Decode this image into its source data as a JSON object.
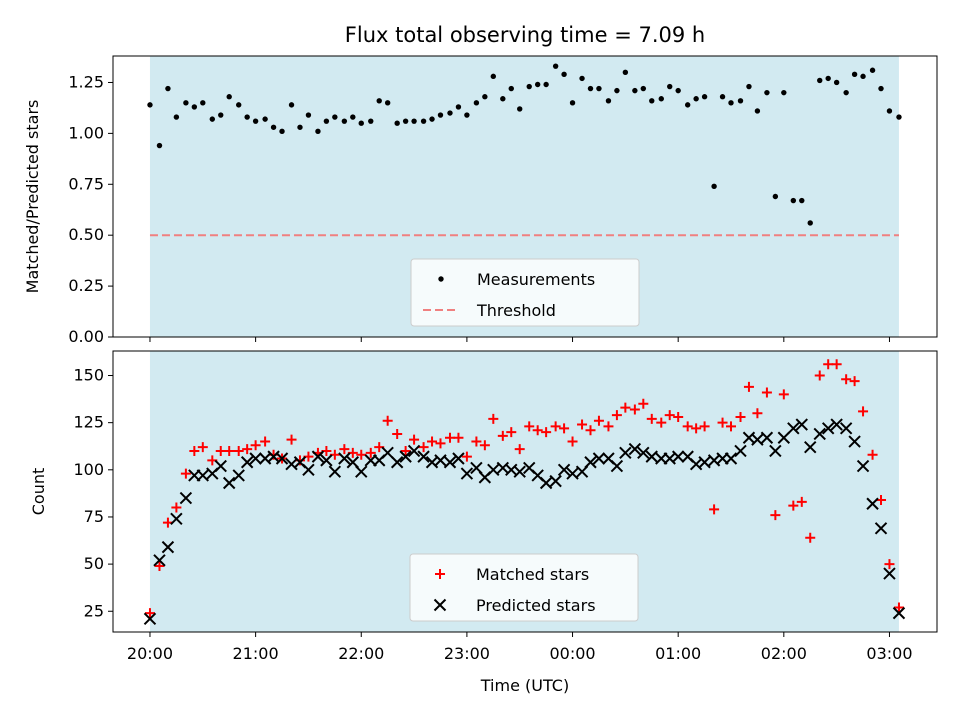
{
  "title": "Flux total observing time = 7.09 h",
  "xlabel": "Time (UTC)",
  "colors": {
    "background_shade": "#add8e6",
    "measurements": "#000000",
    "threshold": "#f08080",
    "matched": "#ff0000",
    "predicted": "#000000"
  },
  "chart_data": [
    {
      "type": "scatter",
      "ylabel": "Matched/Predicted stars",
      "ylim": [
        0,
        1.38
      ],
      "yticks": [
        0.0,
        0.25,
        0.5,
        0.75,
        1.0,
        1.25
      ],
      "ytick_labels": [
        "0.00",
        "0.25",
        "0.50",
        "0.75",
        "1.00",
        "1.25"
      ],
      "xlim_hours": [
        19.65,
        27.45
      ],
      "shade_range_hours": [
        20.0,
        27.09
      ],
      "threshold": 0.5,
      "legend": {
        "position": "lower center",
        "entries": [
          "Measurements",
          "Threshold"
        ]
      },
      "series": [
        {
          "name": "Measurements",
          "marker": "dot",
          "x": [
            20.0,
            20.09,
            20.17,
            20.25,
            20.34,
            20.42,
            20.5,
            20.59,
            20.67,
            20.75,
            20.84,
            20.92,
            21.0,
            21.09,
            21.17,
            21.25,
            21.34,
            21.42,
            21.5,
            21.59,
            21.67,
            21.75,
            21.84,
            21.92,
            22.0,
            22.09,
            22.17,
            22.25,
            22.34,
            22.42,
            22.5,
            22.59,
            22.67,
            22.75,
            22.84,
            22.92,
            23.0,
            23.09,
            23.17,
            23.25,
            23.34,
            23.42,
            23.5,
            23.59,
            23.67,
            23.75,
            23.84,
            23.92,
            24.0,
            24.09,
            24.17,
            24.25,
            24.34,
            24.42,
            24.5,
            24.59,
            24.67,
            24.75,
            24.84,
            24.92,
            25.0,
            25.09,
            25.17,
            25.25,
            25.34,
            25.42,
            25.5,
            25.59,
            25.67,
            25.75,
            25.84,
            25.92,
            26.0,
            26.09,
            26.17,
            26.25,
            26.34,
            26.42,
            26.5,
            26.59,
            26.67,
            26.75,
            26.84,
            26.92,
            27.0,
            27.09
          ],
          "y": [
            1.14,
            0.94,
            1.22,
            1.08,
            1.15,
            1.13,
            1.15,
            1.07,
            1.09,
            1.18,
            1.14,
            1.08,
            1.06,
            1.07,
            1.03,
            1.01,
            1.14,
            1.03,
            1.09,
            1.01,
            1.06,
            1.08,
            1.06,
            1.08,
            1.05,
            1.06,
            1.16,
            1.15,
            1.05,
            1.06,
            1.06,
            1.06,
            1.07,
            1.09,
            1.1,
            1.13,
            1.09,
            1.15,
            1.18,
            1.28,
            1.17,
            1.22,
            1.12,
            1.23,
            1.24,
            1.24,
            1.33,
            1.29,
            1.15,
            1.27,
            1.22,
            1.22,
            1.16,
            1.21,
            1.3,
            1.21,
            1.22,
            1.16,
            1.17,
            1.23,
            1.21,
            1.14,
            1.17,
            1.18,
            0.74,
            1.18,
            1.15,
            1.16,
            1.23,
            1.11,
            1.2,
            0.69,
            1.2,
            0.67,
            0.67,
            0.56,
            1.26,
            1.27,
            1.25,
            1.2,
            1.29,
            1.28,
            1.31,
            1.22,
            1.11,
            1.08
          ]
        },
        {
          "name": "Threshold",
          "marker": "dashed-line",
          "y": 0.5
        }
      ]
    },
    {
      "type": "scatter",
      "ylabel": "Count",
      "ylim": [
        14,
        163
      ],
      "yticks": [
        25,
        50,
        75,
        100,
        125,
        150
      ],
      "ytick_labels": [
        "25",
        "50",
        "75",
        "100",
        "125",
        "150"
      ],
      "xlim_hours": [
        19.65,
        27.45
      ],
      "xticks_hours": [
        20,
        21,
        22,
        23,
        24,
        25,
        26,
        27
      ],
      "xtick_labels": [
        "20:00",
        "21:00",
        "22:00",
        "23:00",
        "00:00",
        "01:00",
        "02:00",
        "03:00"
      ],
      "shade_range_hours": [
        20.0,
        27.09
      ],
      "legend": {
        "position": "lower center",
        "entries": [
          "Matched stars",
          "Predicted stars"
        ]
      },
      "series": [
        {
          "name": "Matched stars",
          "marker": "plus",
          "x": [
            20.0,
            20.09,
            20.17,
            20.25,
            20.34,
            20.42,
            20.5,
            20.59,
            20.67,
            20.75,
            20.84,
            20.92,
            21.0,
            21.09,
            21.17,
            21.25,
            21.34,
            21.42,
            21.5,
            21.59,
            21.67,
            21.75,
            21.84,
            21.92,
            22.0,
            22.09,
            22.17,
            22.25,
            22.34,
            22.42,
            22.5,
            22.59,
            22.67,
            22.75,
            22.84,
            22.92,
            23.0,
            23.09,
            23.17,
            23.25,
            23.34,
            23.42,
            23.5,
            23.59,
            23.67,
            23.75,
            23.84,
            23.92,
            24.0,
            24.09,
            24.17,
            24.25,
            24.34,
            24.42,
            24.5,
            24.59,
            24.67,
            24.75,
            24.84,
            24.92,
            25.0,
            25.09,
            25.17,
            25.25,
            25.34,
            25.42,
            25.5,
            25.59,
            25.67,
            25.75,
            25.84,
            25.92,
            26.0,
            26.09,
            26.17,
            26.25,
            26.34,
            26.42,
            26.5,
            26.59,
            26.67,
            26.75,
            26.84,
            26.92,
            27.0,
            27.09
          ],
          "y": [
            24,
            49,
            72,
            80,
            98,
            110,
            112,
            105,
            110,
            110,
            110,
            111,
            113,
            115,
            108,
            106,
            116,
            105,
            107,
            109,
            110,
            108,
            111,
            109,
            108,
            109,
            112,
            126,
            119,
            110,
            116,
            112,
            115,
            114,
            117,
            117,
            107,
            115,
            113,
            127,
            118,
            120,
            111,
            123,
            121,
            120,
            123,
            122,
            115,
            124,
            121,
            126,
            123,
            129,
            133,
            132,
            135,
            127,
            125,
            129,
            128,
            123,
            122,
            123,
            79,
            125,
            123,
            128,
            144,
            130,
            141,
            76,
            140,
            81,
            83,
            64,
            150,
            156,
            156,
            148,
            147,
            131,
            108,
            84,
            50,
            27
          ]
        },
        {
          "name": "Predicted stars",
          "marker": "x",
          "x": [
            20.0,
            20.09,
            20.17,
            20.25,
            20.34,
            20.42,
            20.5,
            20.59,
            20.67,
            20.75,
            20.84,
            20.92,
            21.0,
            21.09,
            21.17,
            21.25,
            21.34,
            21.42,
            21.5,
            21.59,
            21.67,
            21.75,
            21.84,
            21.92,
            22.0,
            22.09,
            22.17,
            22.25,
            22.34,
            22.42,
            22.5,
            22.59,
            22.67,
            22.75,
            22.84,
            22.92,
            23.0,
            23.09,
            23.17,
            23.25,
            23.34,
            23.42,
            23.5,
            23.59,
            23.67,
            23.75,
            23.84,
            23.92,
            24.0,
            24.09,
            24.17,
            24.25,
            24.34,
            24.42,
            24.5,
            24.59,
            24.67,
            24.75,
            24.84,
            24.92,
            25.0,
            25.09,
            25.17,
            25.25,
            25.34,
            25.42,
            25.5,
            25.59,
            25.67,
            25.75,
            25.84,
            25.92,
            26.0,
            26.09,
            26.17,
            26.25,
            26.34,
            26.42,
            26.5,
            26.59,
            26.67,
            26.75,
            26.84,
            26.92,
            27.0,
            27.09
          ],
          "y": [
            21,
            52,
            59,
            74,
            85,
            97,
            97,
            98,
            102,
            93,
            97,
            104,
            106,
            106,
            107,
            106,
            103,
            104,
            100,
            107,
            105,
            99,
            106,
            104,
            99,
            105,
            105,
            109,
            104,
            107,
            110,
            107,
            104,
            105,
            104,
            106,
            98,
            101,
            96,
            100,
            101,
            100,
            99,
            101,
            97,
            93,
            94,
            100,
            98,
            99,
            104,
            106,
            106,
            102,
            109,
            111,
            109,
            107,
            106,
            106,
            107,
            107,
            103,
            104,
            105,
            106,
            106,
            110,
            117,
            116,
            117,
            110,
            117,
            122,
            124,
            112,
            119,
            122,
            124,
            122,
            115,
            102,
            82,
            69,
            45,
            24
          ]
        }
      ]
    }
  ]
}
